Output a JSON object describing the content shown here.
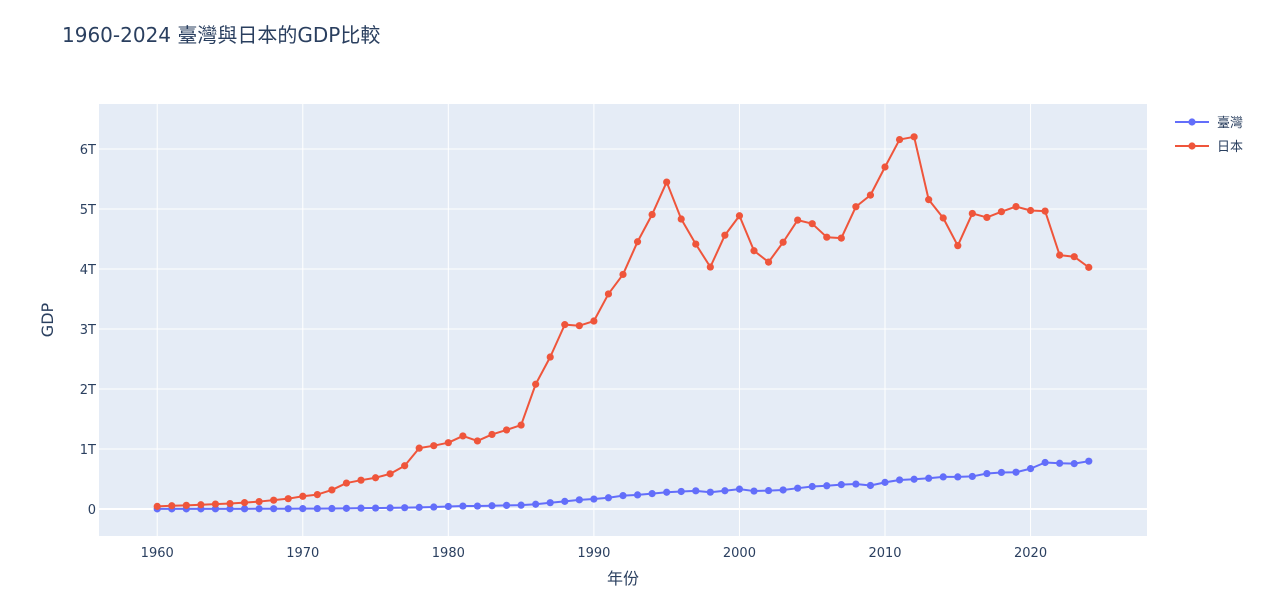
{
  "chart_data": {
    "type": "line",
    "title": "1960-2024 臺灣與日本的GDP比較",
    "xlabel": "年份",
    "ylabel": "GDP",
    "xlim": [
      1956,
      2028
    ],
    "ylim": [
      -0.45,
      6.75
    ],
    "x_ticks": [
      1960,
      1970,
      1980,
      1990,
      2000,
      2010,
      2020
    ],
    "x_tick_labels": [
      "1960",
      "1970",
      "1980",
      "1990",
      "2000",
      "2010",
      "2020"
    ],
    "y_ticks": [
      0,
      1,
      2,
      3,
      4,
      5,
      6
    ],
    "y_tick_labels": [
      "0",
      "1T",
      "2T",
      "3T",
      "4T",
      "5T",
      "6T"
    ],
    "y_unit": "trillion",
    "legend_position": "top-right",
    "x": [
      1960,
      1961,
      1962,
      1963,
      1964,
      1965,
      1966,
      1967,
      1968,
      1969,
      1970,
      1971,
      1972,
      1973,
      1974,
      1975,
      1976,
      1977,
      1978,
      1979,
      1980,
      1981,
      1982,
      1983,
      1984,
      1985,
      1986,
      1987,
      1988,
      1989,
      1990,
      1991,
      1992,
      1993,
      1994,
      1995,
      1996,
      1997,
      1998,
      1999,
      2000,
      2001,
      2002,
      2003,
      2004,
      2005,
      2006,
      2007,
      2008,
      2009,
      2010,
      2011,
      2012,
      2013,
      2014,
      2015,
      2016,
      2017,
      2018,
      2019,
      2020,
      2021,
      2022,
      2023,
      2024
    ],
    "series": [
      {
        "name": "臺灣",
        "color": "#636efa",
        "values": [
          0.002,
          0.002,
          0.002,
          0.002,
          0.003,
          0.003,
          0.003,
          0.004,
          0.005,
          0.005,
          0.006,
          0.007,
          0.008,
          0.011,
          0.014,
          0.016,
          0.019,
          0.022,
          0.027,
          0.033,
          0.042,
          0.049,
          0.049,
          0.054,
          0.061,
          0.064,
          0.079,
          0.105,
          0.127,
          0.153,
          0.166,
          0.187,
          0.223,
          0.235,
          0.256,
          0.279,
          0.292,
          0.303,
          0.28,
          0.304,
          0.331,
          0.299,
          0.307,
          0.317,
          0.347,
          0.375,
          0.387,
          0.406,
          0.416,
          0.392,
          0.444,
          0.484,
          0.496,
          0.512,
          0.535,
          0.535,
          0.543,
          0.591,
          0.609,
          0.613,
          0.673,
          0.775,
          0.762,
          0.756,
          0.797
        ]
      },
      {
        "name": "日本",
        "color": "#ef553b",
        "values": [
          0.044,
          0.054,
          0.061,
          0.071,
          0.082,
          0.091,
          0.106,
          0.124,
          0.147,
          0.172,
          0.212,
          0.24,
          0.318,
          0.432,
          0.48,
          0.521,
          0.586,
          0.721,
          1.014,
          1.055,
          1.105,
          1.218,
          1.134,
          1.243,
          1.318,
          1.399,
          2.079,
          2.533,
          3.073,
          3.055,
          3.133,
          3.584,
          3.909,
          4.454,
          4.908,
          5.449,
          4.833,
          4.415,
          4.033,
          4.563,
          4.887,
          4.304,
          4.115,
          4.446,
          4.815,
          4.755,
          4.53,
          4.515,
          5.038,
          5.231,
          5.7,
          6.157,
          6.203,
          5.156,
          4.85,
          4.389,
          4.926,
          4.859,
          4.955,
          5.04,
          4.975,
          4.965,
          4.231,
          4.205,
          4.027
        ]
      }
    ]
  }
}
